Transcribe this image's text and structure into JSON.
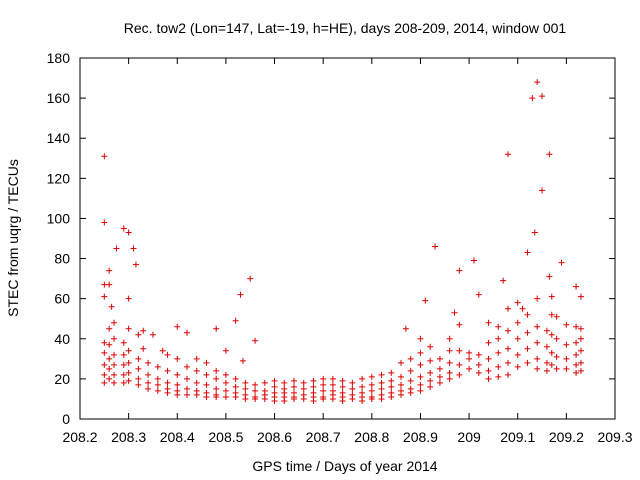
{
  "chart_data": {
    "type": "scatter",
    "title": "Rec. tow2 (Lon=147, Lat=-19, h=HE), days 208-209, 2014, window 001",
    "xlabel": "GPS time / Days of year 2014",
    "ylabel": "STEC from uqrg / TECUs",
    "xlim": [
      208.2,
      209.3
    ],
    "ylim": [
      0,
      180
    ],
    "xticks": [
      "208.2",
      "208.3",
      "208.4",
      "208.5",
      "208.6",
      "208.7",
      "208.8",
      "208.9",
      "209",
      "209.1",
      "209.2",
      "209.3"
    ],
    "yticks": [
      "0",
      "20",
      "40",
      "60",
      "80",
      "100",
      "120",
      "140",
      "160",
      "180"
    ],
    "grid": false,
    "marker": "+",
    "marker_color": "#dd0000",
    "series": [
      {
        "points": [
          [
            208.25,
            131
          ],
          [
            208.25,
            98
          ],
          [
            208.25,
            67
          ],
          [
            208.25,
            61
          ],
          [
            208.25,
            38
          ],
          [
            208.25,
            33
          ],
          [
            208.25,
            27
          ],
          [
            208.25,
            22
          ],
          [
            208.25,
            18
          ],
          [
            208.26,
            74
          ],
          [
            208.26,
            67
          ],
          [
            208.265,
            56
          ],
          [
            208.26,
            45
          ],
          [
            208.26,
            37
          ],
          [
            208.26,
            30
          ],
          [
            208.26,
            25
          ],
          [
            208.26,
            20
          ],
          [
            208.275,
            85
          ],
          [
            208.27,
            48
          ],
          [
            208.27,
            40
          ],
          [
            208.27,
            32
          ],
          [
            208.27,
            27
          ],
          [
            208.27,
            22
          ],
          [
            208.27,
            18
          ],
          [
            208.29,
            95
          ],
          [
            208.29,
            38
          ],
          [
            208.29,
            32
          ],
          [
            208.29,
            27
          ],
          [
            208.29,
            22
          ],
          [
            208.29,
            18
          ],
          [
            208.3,
            93
          ],
          [
            208.3,
            60
          ],
          [
            208.3,
            45
          ],
          [
            208.3,
            34
          ],
          [
            208.3,
            28
          ],
          [
            208.3,
            23
          ],
          [
            208.3,
            19
          ],
          [
            208.31,
            85
          ],
          [
            208.315,
            77
          ],
          [
            208.32,
            42
          ],
          [
            208.32,
            30
          ],
          [
            208.32,
            25
          ],
          [
            208.32,
            20
          ],
          [
            208.32,
            17
          ],
          [
            208.33,
            44
          ],
          [
            208.33,
            35
          ],
          [
            208.34,
            28
          ],
          [
            208.34,
            22
          ],
          [
            208.34,
            18
          ],
          [
            208.34,
            15
          ],
          [
            208.35,
            42
          ],
          [
            208.36,
            26
          ],
          [
            208.36,
            20
          ],
          [
            208.36,
            17
          ],
          [
            208.36,
            14
          ],
          [
            208.37,
            34
          ],
          [
            208.38,
            32
          ],
          [
            208.38,
            24
          ],
          [
            208.38,
            18
          ],
          [
            208.38,
            15
          ],
          [
            208.38,
            13
          ],
          [
            208.4,
            46
          ],
          [
            208.4,
            30
          ],
          [
            208.4,
            22
          ],
          [
            208.4,
            17
          ],
          [
            208.4,
            14
          ],
          [
            208.4,
            12
          ],
          [
            208.42,
            43
          ],
          [
            208.42,
            26
          ],
          [
            208.42,
            20
          ],
          [
            208.42,
            15
          ],
          [
            208.42,
            12
          ],
          [
            208.44,
            30
          ],
          [
            208.44,
            24
          ],
          [
            208.44,
            18
          ],
          [
            208.44,
            14
          ],
          [
            208.44,
            12
          ],
          [
            208.46,
            28
          ],
          [
            208.46,
            22
          ],
          [
            208.46,
            17
          ],
          [
            208.46,
            13
          ],
          [
            208.46,
            11
          ],
          [
            208.48,
            45
          ],
          [
            208.48,
            24
          ],
          [
            208.48,
            20
          ],
          [
            208.48,
            15
          ],
          [
            208.48,
            12
          ],
          [
            208.48,
            11
          ],
          [
            208.5,
            34
          ],
          [
            208.5,
            22
          ],
          [
            208.5,
            18
          ],
          [
            208.5,
            14
          ],
          [
            208.5,
            11
          ],
          [
            208.52,
            49
          ],
          [
            208.52,
            20
          ],
          [
            208.52,
            16
          ],
          [
            208.52,
            13
          ],
          [
            208.52,
            11
          ],
          [
            208.53,
            62
          ],
          [
            208.535,
            29
          ],
          [
            208.54,
            18
          ],
          [
            208.54,
            15
          ],
          [
            208.54,
            12
          ],
          [
            208.54,
            10
          ],
          [
            208.55,
            70
          ],
          [
            208.56,
            39
          ],
          [
            208.56,
            17
          ],
          [
            208.56,
            14
          ],
          [
            208.56,
            11
          ],
          [
            208.56,
            10
          ],
          [
            208.58,
            18
          ],
          [
            208.58,
            14
          ],
          [
            208.58,
            12
          ],
          [
            208.58,
            10
          ],
          [
            208.6,
            19
          ],
          [
            208.6,
            16
          ],
          [
            208.6,
            13
          ],
          [
            208.6,
            11
          ],
          [
            208.6,
            9
          ],
          [
            208.62,
            18
          ],
          [
            208.62,
            15
          ],
          [
            208.62,
            13
          ],
          [
            208.62,
            11
          ],
          [
            208.62,
            9
          ],
          [
            208.64,
            19
          ],
          [
            208.64,
            16
          ],
          [
            208.64,
            13
          ],
          [
            208.64,
            11
          ],
          [
            208.64,
            10
          ],
          [
            208.66,
            18
          ],
          [
            208.66,
            15
          ],
          [
            208.66,
            12
          ],
          [
            208.66,
            10
          ],
          [
            208.68,
            19
          ],
          [
            208.68,
            16
          ],
          [
            208.68,
            13
          ],
          [
            208.68,
            11
          ],
          [
            208.68,
            9
          ],
          [
            208.7,
            20
          ],
          [
            208.7,
            17
          ],
          [
            208.7,
            14
          ],
          [
            208.7,
            11
          ],
          [
            208.7,
            10
          ],
          [
            208.72,
            20
          ],
          [
            208.72,
            17
          ],
          [
            208.72,
            14
          ],
          [
            208.72,
            12
          ],
          [
            208.72,
            10
          ],
          [
            208.74,
            19
          ],
          [
            208.74,
            16
          ],
          [
            208.74,
            13
          ],
          [
            208.74,
            11
          ],
          [
            208.74,
            9
          ],
          [
            208.76,
            18
          ],
          [
            208.76,
            15
          ],
          [
            208.76,
            12
          ],
          [
            208.76,
            10
          ],
          [
            208.78,
            20
          ],
          [
            208.78,
            16
          ],
          [
            208.78,
            13
          ],
          [
            208.78,
            11
          ],
          [
            208.78,
            9
          ],
          [
            208.8,
            21
          ],
          [
            208.8,
            17
          ],
          [
            208.8,
            14
          ],
          [
            208.8,
            11
          ],
          [
            208.8,
            10
          ],
          [
            208.82,
            22
          ],
          [
            208.82,
            18
          ],
          [
            208.82,
            15
          ],
          [
            208.82,
            12
          ],
          [
            208.82,
            10
          ],
          [
            208.84,
            23
          ],
          [
            208.84,
            19
          ],
          [
            208.84,
            16
          ],
          [
            208.84,
            13
          ],
          [
            208.84,
            11
          ],
          [
            208.86,
            28
          ],
          [
            208.86,
            21
          ],
          [
            208.86,
            17
          ],
          [
            208.86,
            14
          ],
          [
            208.86,
            12
          ],
          [
            208.87,
            45
          ],
          [
            208.88,
            30
          ],
          [
            208.88,
            24
          ],
          [
            208.88,
            19
          ],
          [
            208.88,
            15
          ],
          [
            208.88,
            13
          ],
          [
            208.9,
            40
          ],
          [
            208.9,
            33
          ],
          [
            208.9,
            27
          ],
          [
            208.9,
            21
          ],
          [
            208.9,
            17
          ],
          [
            208.9,
            14
          ],
          [
            208.91,
            59
          ],
          [
            208.92,
            36
          ],
          [
            208.92,
            29
          ],
          [
            208.92,
            23
          ],
          [
            208.92,
            19
          ],
          [
            208.92,
            16
          ],
          [
            208.93,
            86
          ],
          [
            208.94,
            30
          ],
          [
            208.94,
            25
          ],
          [
            208.94,
            21
          ],
          [
            208.94,
            18
          ],
          [
            208.96,
            40
          ],
          [
            208.96,
            34
          ],
          [
            208.96,
            28
          ],
          [
            208.96,
            23
          ],
          [
            208.96,
            20
          ],
          [
            208.97,
            53
          ],
          [
            208.98,
            74
          ],
          [
            208.98,
            47
          ],
          [
            208.98,
            34
          ],
          [
            208.98,
            27
          ],
          [
            208.98,
            22
          ],
          [
            209.01,
            79
          ],
          [
            209.0,
            33
          ],
          [
            209.0,
            30
          ],
          [
            209.0,
            25
          ],
          [
            209.02,
            62
          ],
          [
            209.02,
            32
          ],
          [
            209.02,
            27
          ],
          [
            209.02,
            23
          ],
          [
            209.04,
            48
          ],
          [
            209.04,
            38
          ],
          [
            209.04,
            30
          ],
          [
            209.04,
            24
          ],
          [
            209.04,
            20
          ],
          [
            209.06,
            46
          ],
          [
            209.06,
            40
          ],
          [
            209.06,
            33
          ],
          [
            209.06,
            26
          ],
          [
            209.06,
            21
          ],
          [
            209.07,
            69
          ],
          [
            209.08,
            132
          ],
          [
            209.08,
            55
          ],
          [
            209.08,
            44
          ],
          [
            209.08,
            35
          ],
          [
            209.08,
            28
          ],
          [
            209.08,
            22
          ],
          [
            209.1,
            58
          ],
          [
            209.1,
            48
          ],
          [
            209.1,
            40
          ],
          [
            209.1,
            32
          ],
          [
            209.1,
            26
          ],
          [
            209.11,
            55
          ],
          [
            209.12,
            83
          ],
          [
            209.12,
            52
          ],
          [
            209.12,
            43
          ],
          [
            209.12,
            35
          ],
          [
            209.12,
            28
          ],
          [
            209.13,
            160
          ],
          [
            209.135,
            93
          ],
          [
            209.14,
            168
          ],
          [
            209.14,
            60
          ],
          [
            209.14,
            46
          ],
          [
            209.14,
            38
          ],
          [
            209.14,
            30
          ],
          [
            209.14,
            25
          ],
          [
            209.15,
            161
          ],
          [
            209.15,
            114
          ],
          [
            209.16,
            44
          ],
          [
            209.16,
            36
          ],
          [
            209.16,
            28
          ],
          [
            209.16,
            24
          ],
          [
            209.165,
            132
          ],
          [
            209.165,
            71
          ],
          [
            209.17,
            61
          ],
          [
            209.17,
            52
          ],
          [
            209.17,
            42
          ],
          [
            209.17,
            33
          ],
          [
            209.17,
            27
          ],
          [
            209.18,
            51
          ],
          [
            209.18,
            40
          ],
          [
            209.18,
            31
          ],
          [
            209.18,
            25
          ],
          [
            209.19,
            78
          ],
          [
            209.2,
            47
          ],
          [
            209.2,
            37
          ],
          [
            209.2,
            30
          ],
          [
            209.2,
            25
          ],
          [
            209.22,
            66
          ],
          [
            209.22,
            46
          ],
          [
            209.22,
            38
          ],
          [
            209.22,
            32
          ],
          [
            209.22,
            27
          ],
          [
            209.22,
            23
          ],
          [
            209.23,
            61
          ],
          [
            209.23,
            45
          ],
          [
            209.23,
            40
          ],
          [
            209.23,
            34
          ],
          [
            209.23,
            28
          ],
          [
            209.23,
            24
          ]
        ]
      }
    ]
  }
}
